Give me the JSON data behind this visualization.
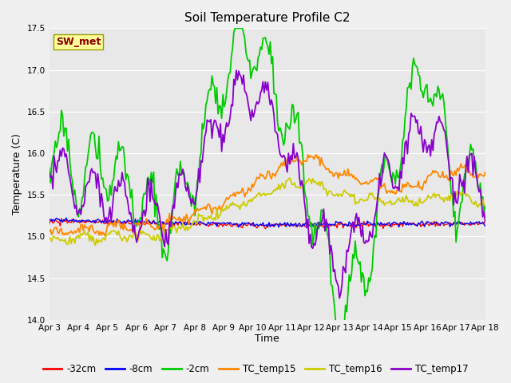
{
  "title": "Soil Temperature Profile C2",
  "xlabel": "Time",
  "ylabel": "Temperature (C)",
  "ylim": [
    14.0,
    17.5
  ],
  "xlim": [
    0,
    360
  ],
  "fig_bg_color": "#f0f0f0",
  "plot_bg_color": "#e8e8e8",
  "annotation_text": "SW_met",
  "annotation_color": "#8b0000",
  "annotation_bg": "#ffff99",
  "xtick_labels": [
    "Apr 3",
    "Apr 4",
    "Apr 5",
    "Apr 6",
    "Apr 7",
    "Apr 8",
    "Apr 9",
    "Apr 10",
    "Apr 11",
    "Apr 12",
    "Apr 13",
    "Apr 14",
    "Apr 15",
    "Apr 16",
    "Apr 17",
    "Apr 18"
  ],
  "legend_entries": [
    "-32cm",
    "-8cm",
    "-2cm",
    "TC_temp15",
    "TC_temp16",
    "TC_temp17"
  ],
  "line_colors": [
    "#ff0000",
    "#0000ff",
    "#00cc00",
    "#ff8800",
    "#cccc00",
    "#8800cc"
  ],
  "line_widths": [
    1.0,
    1.0,
    1.3,
    1.3,
    1.3,
    1.3
  ],
  "title_fontsize": 11,
  "tick_fontsize": 7.5,
  "legend_fontsize": 8.5
}
